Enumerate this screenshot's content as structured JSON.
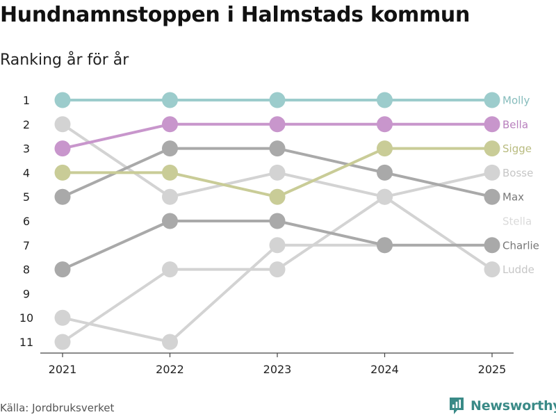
{
  "title": "Hundnamnstoppen i Halmstads kommun",
  "subtitle": "Ranking år för år",
  "source": "Källa: Jordbruksverket",
  "brand": {
    "name": "Newsworthy",
    "icon": "newsworthy-logo-icon",
    "color": "#3a8a87"
  },
  "chart_data": {
    "type": "line",
    "title": "Hundnamnstoppen i Halmstads kommun",
    "subtitle": "Ranking år för år",
    "xlabel": "",
    "ylabel": "",
    "categories": [
      "2021",
      "2022",
      "2023",
      "2024",
      "2025"
    ],
    "ytick_labels": [
      "1",
      "2",
      "3",
      "4",
      "5",
      "6",
      "7",
      "8",
      "9",
      "10",
      "11"
    ],
    "ylim": [
      1,
      11
    ],
    "y_inverted": true,
    "grid": false,
    "series": [
      {
        "name": "Ludde",
        "values": [
          11,
          8,
          8,
          5,
          8
        ],
        "color": "#d3d3d3",
        "label_color": "#c6c6c6"
      },
      {
        "name": "Stella",
        "values": [
          10,
          11,
          7,
          7,
          null
        ],
        "color": "#d3d3d3",
        "label_color": "#dadada"
      },
      {
        "name": "Bosse",
        "values": [
          2,
          5,
          4,
          5,
          4
        ],
        "color": "#d3d3d3",
        "label_color": "#c6c6c6"
      },
      {
        "name": "Charlie",
        "values": [
          8,
          6,
          6,
          7,
          7
        ],
        "color": "#a9a9a9",
        "label_color": "#777777"
      },
      {
        "name": "Max",
        "values": [
          5,
          3,
          3,
          4,
          5
        ],
        "color": "#a9a9a9",
        "label_color": "#777777"
      },
      {
        "name": "Sigge",
        "values": [
          4,
          4,
          5,
          3,
          3
        ],
        "color": "#c9cc97",
        "label_color": "#b8bb7f"
      },
      {
        "name": "Bella",
        "values": [
          3,
          2,
          2,
          2,
          2
        ],
        "color": "#c896cc",
        "label_color": "#b87fbd"
      },
      {
        "name": "Molly",
        "values": [
          1,
          1,
          1,
          1,
          1
        ],
        "color": "#9ccccc",
        "label_color": "#86bcbc"
      }
    ],
    "label_ranks": {
      "Molly": 1,
      "Bella": 2,
      "Sigge": 3,
      "Bosse": 4,
      "Max": 5,
      "Stella": 6,
      "Charlie": 7,
      "Ludde": 8
    }
  }
}
